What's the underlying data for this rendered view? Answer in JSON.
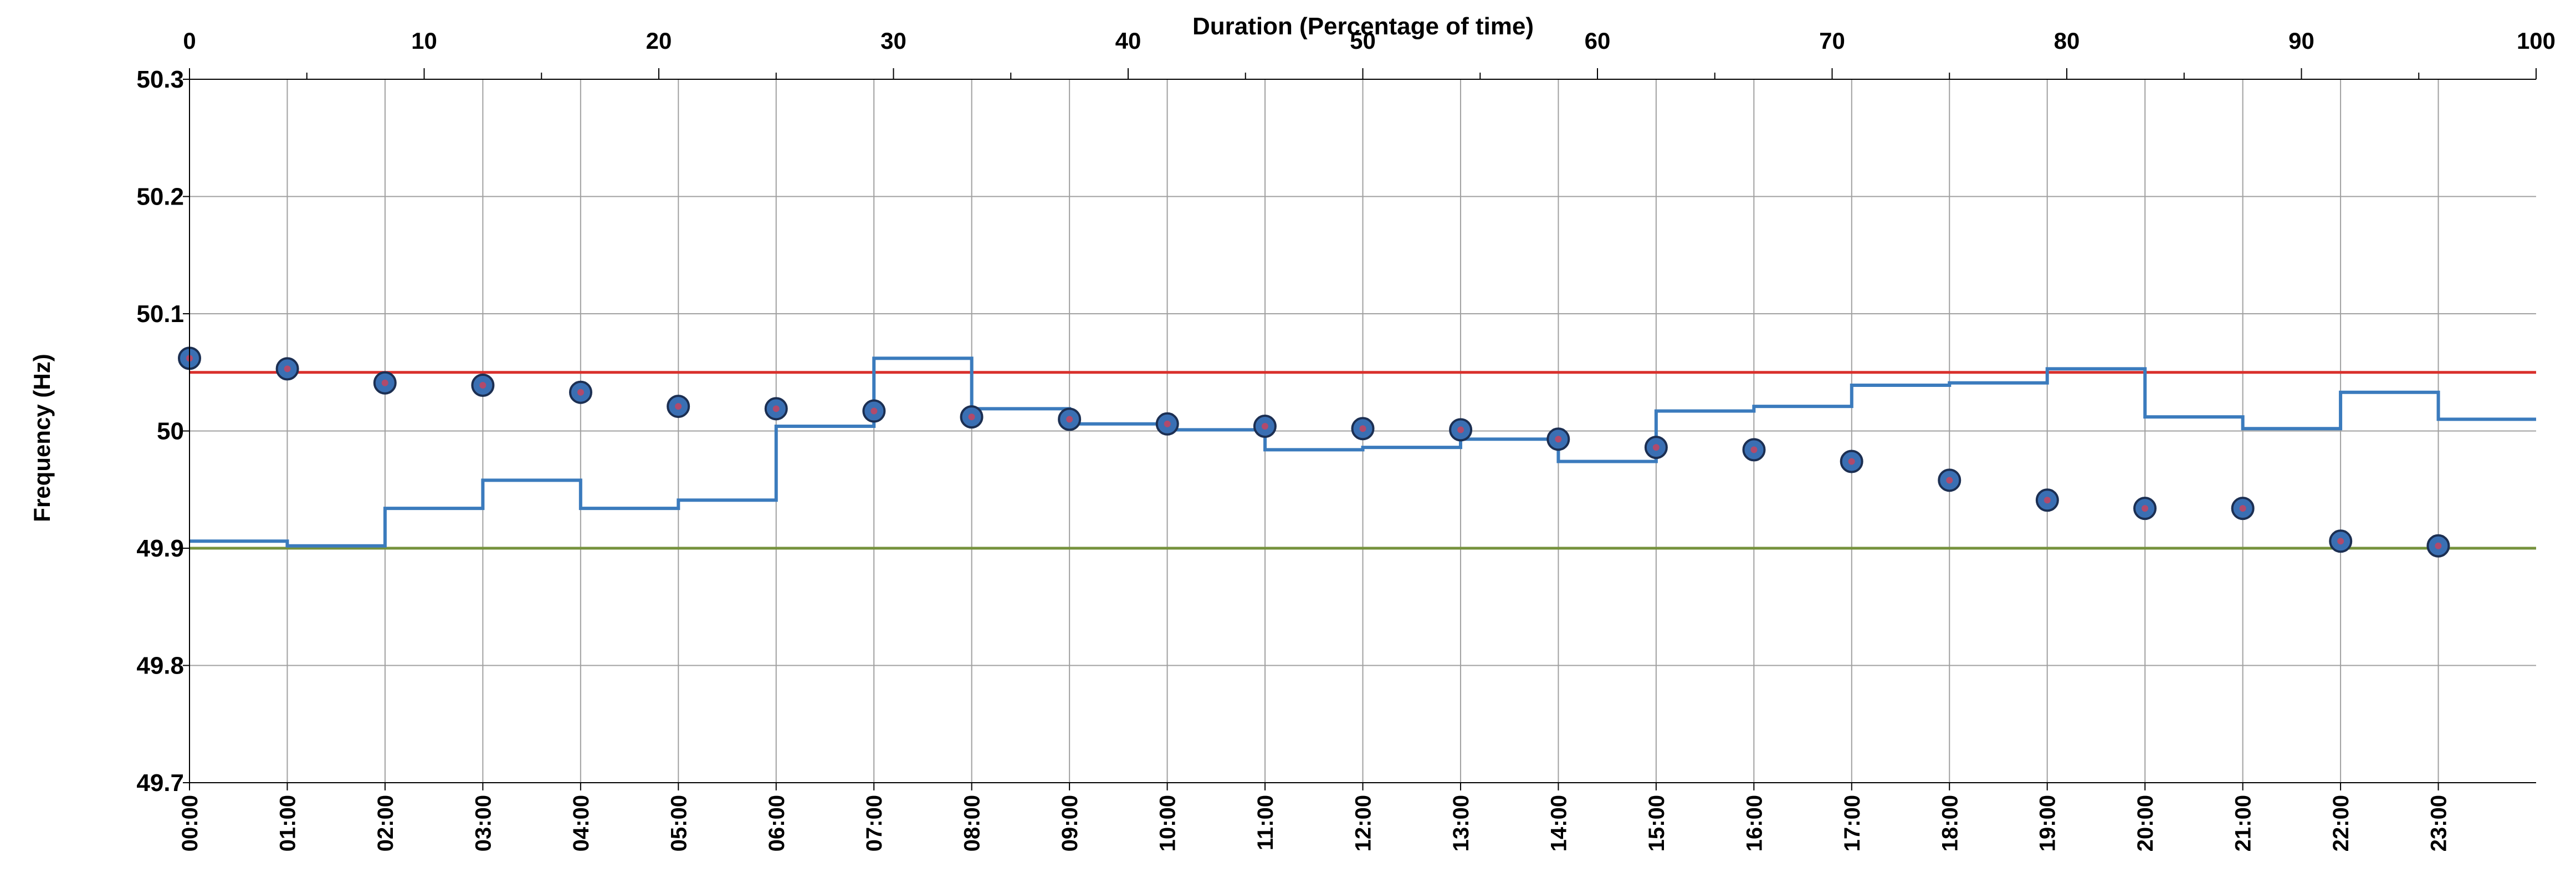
{
  "chart_data": {
    "type": "line",
    "colors": {
      "frame": "#000000",
      "grid": "#a0a0a0",
      "upper_band": "#d9302c",
      "lower_band": "#76923c",
      "duration_curve": "#3b7bbd",
      "marker_fill": "#3a6fb3",
      "marker_dot": "#b14a6c"
    },
    "y_axis": {
      "label": "Frequency (Hz)",
      "ylim": [
        49.7,
        50.3
      ],
      "ticks": [
        49.7,
        49.8,
        49.9,
        50.0,
        50.1,
        50.2,
        50.3
      ],
      "tick_labels": [
        "49.7",
        "49.8",
        "49.9",
        "50",
        "50.1",
        "50.2",
        "50.3"
      ]
    },
    "x_axis_bottom": {
      "type": "time",
      "ticks": [
        "00:00",
        "01:00",
        "02:00",
        "03:00",
        "04:00",
        "05:00",
        "06:00",
        "07:00",
        "08:00",
        "09:00",
        "10:00",
        "11:00",
        "12:00",
        "13:00",
        "14:00",
        "15:00",
        "16:00",
        "17:00",
        "18:00",
        "19:00",
        "20:00",
        "21:00",
        "22:00",
        "23:00"
      ],
      "range_hours": [
        0,
        24
      ]
    },
    "x_axis_top": {
      "label": "Duration (Percentage of time)",
      "xlim": [
        0,
        100
      ],
      "ticks": [
        0,
        10,
        20,
        30,
        40,
        50,
        60,
        70,
        80,
        90,
        100
      ],
      "tick_labels": [
        "0",
        "10",
        "20",
        "30",
        "40",
        "50",
        "60",
        "70",
        "80",
        "90",
        "100"
      ],
      "minor_step": 5
    },
    "grid": true,
    "reference_lines": [
      {
        "y": 50.05,
        "color": "#d9302c"
      },
      {
        "y": 49.9,
        "color": "#76923c"
      }
    ],
    "series": [
      {
        "type": "step",
        "axis": "time",
        "color": "#3b7bbd",
        "x": [
          "00:00",
          "01:00",
          "02:00",
          "03:00",
          "04:00",
          "05:00",
          "06:00",
          "07:00",
          "08:00",
          "09:00",
          "10:00",
          "11:00",
          "12:00",
          "13:00",
          "14:00",
          "15:00",
          "16:00",
          "17:00",
          "18:00",
          "19:00",
          "20:00",
          "21:00",
          "22:00",
          "23:00"
        ],
        "values": [
          49.906,
          49.902,
          49.934,
          49.958,
          49.934,
          49.941,
          50.004,
          50.062,
          50.019,
          50.006,
          50.001,
          49.984,
          49.986,
          49.993,
          49.974,
          50.017,
          50.021,
          50.039,
          50.041,
          50.053,
          50.012,
          50.002,
          50.033,
          50.01
        ]
      },
      {
        "type": "scatter",
        "axis": "duration",
        "marker": "circle",
        "x": [
          0,
          4.17,
          8.33,
          12.5,
          16.67,
          20.83,
          25,
          29.17,
          33.33,
          37.5,
          41.67,
          45.83,
          50,
          54.17,
          58.33,
          62.5,
          66.67,
          70.83,
          75,
          79.17,
          83.33,
          87.5,
          91.67,
          95.83
        ],
        "values": [
          50.062,
          50.053,
          50.041,
          50.039,
          50.033,
          50.021,
          50.019,
          50.017,
          50.012,
          50.01,
          50.006,
          50.004,
          50.002,
          50.001,
          49.993,
          49.986,
          49.984,
          49.974,
          49.958,
          49.941,
          49.934,
          49.934,
          49.906,
          49.902
        ]
      }
    ]
  }
}
